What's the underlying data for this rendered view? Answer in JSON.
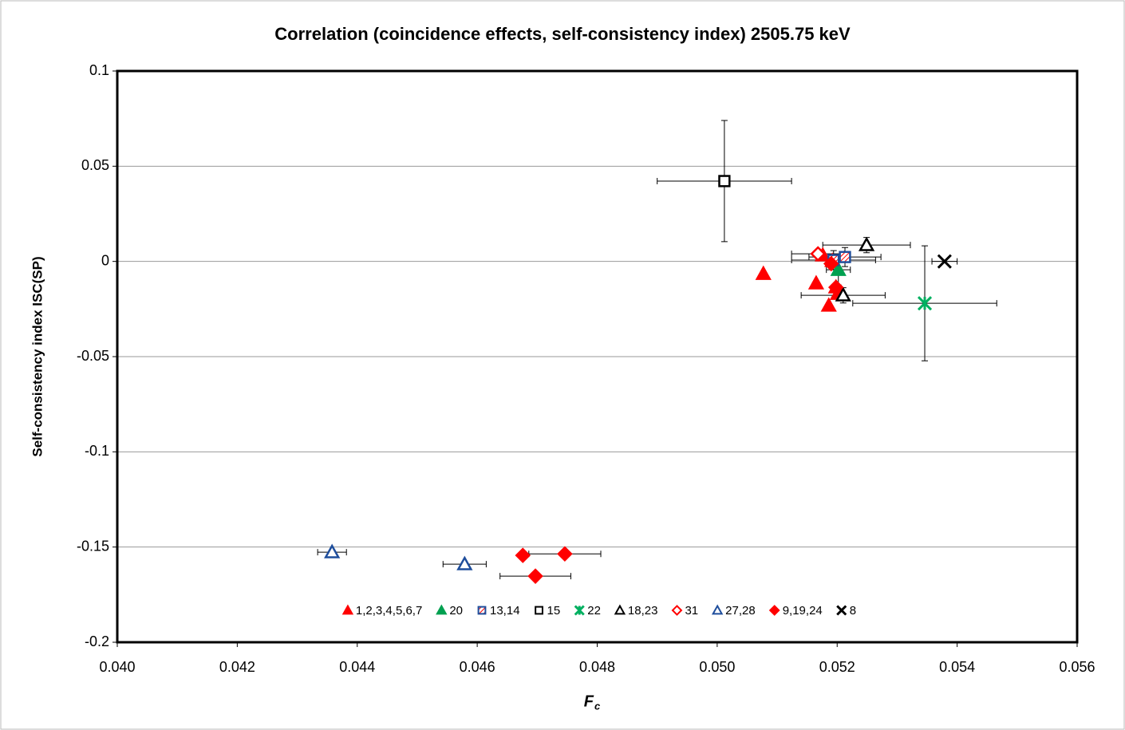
{
  "chart_data": {
    "type": "scatter",
    "title": "Correlation (coincidence effects, self-consistency index) 2505.75 keV",
    "xlabel": "F",
    "xlabel_sub": "c",
    "ylabel": "Self-consistency index ISC(SP)",
    "xlim": [
      0.04,
      0.056
    ],
    "xticks": [
      {
        "value": 0.04,
        "label": "0.040"
      },
      {
        "value": 0.042,
        "label": "0.042"
      },
      {
        "value": 0.044,
        "label": "0.044"
      },
      {
        "value": 0.046,
        "label": "0.046"
      },
      {
        "value": 0.048,
        "label": "0.048"
      },
      {
        "value": 0.05,
        "label": "0.050"
      },
      {
        "value": 0.052,
        "label": "0.052"
      },
      {
        "value": 0.054,
        "label": "0.054"
      },
      {
        "value": 0.056,
        "label": "0.056"
      }
    ],
    "ylim": [
      -0.2,
      0.1
    ],
    "yticks": [
      0.1,
      0.05,
      0,
      -0.05,
      -0.1,
      -0.15,
      -0.2
    ],
    "grid": true,
    "legend": "bottom",
    "series": [
      {
        "name": "1,2,3,4,5,6,7",
        "color": "#ff0000",
        "marker": "triangle",
        "fill": "solid",
        "x": [
          0.05077,
          0.05165,
          0.05176,
          0.05186,
          0.05198,
          0.05192,
          0.05201
        ],
        "values": [
          -0.0065,
          -0.0115,
          0.0032,
          -0.0232,
          -0.0136,
          0.0003,
          -0.017
        ]
      },
      {
        "name": "20",
        "color": "#00a050",
        "marker": "triangle",
        "fill": "solid",
        "x": [
          0.05202
        ],
        "values": [
          -0.0044
        ],
        "xerr": [
          0.0002
        ],
        "yerr": [
          0.008
        ]
      },
      {
        "name": "13,14",
        "color": "#1f4e9c",
        "marker": "square",
        "fill": "hatch",
        "x": [
          0.05194,
          0.05213
        ],
        "values": [
          0.0007,
          0.0023
        ],
        "xerr": [
          0.0007,
          0.0006
        ],
        "yerr": [
          0.005,
          0.005
        ]
      },
      {
        "name": "15",
        "color": "#000000",
        "marker": "square",
        "fill": "hollow",
        "x": [
          0.05012
        ],
        "values": [
          0.0422
        ],
        "xerr": [
          0.00112
        ],
        "yerr": [
          0.0318
        ]
      },
      {
        "name": "22",
        "color": "#00b060",
        "marker": "star",
        "fill": "hollow",
        "x": [
          0.05346
        ],
        "values": [
          -0.022
        ],
        "xerr": [
          0.0012
        ],
        "yerr": [
          0.0302
        ]
      },
      {
        "name": "18,23",
        "color": "#000000",
        "marker": "triangle",
        "fill": "hollow",
        "x": [
          0.05249,
          0.0521
        ],
        "values": [
          0.0086,
          -0.0178
        ],
        "xerr": [
          0.00073,
          0.0007
        ],
        "yerr": [
          0.004,
          0.004
        ]
      },
      {
        "name": "31",
        "color": "#ff0000",
        "marker": "diamond",
        "fill": "hollow",
        "x": [
          0.05168
        ],
        "values": [
          0.004
        ],
        "xerr": [
          0.00044
        ]
      },
      {
        "name": "27,28",
        "color": "#1f4e9c",
        "marker": "triangle",
        "fill": "hollow",
        "x": [
          0.04358,
          0.04579
        ],
        "values": [
          -0.1527,
          -0.159
        ],
        "xerr": [
          0.00024,
          0.00036
        ]
      },
      {
        "name": "9,19,24",
        "color": "#ff0000",
        "marker": "diamond",
        "fill": "solid",
        "x": [
          0.04676,
          0.04746,
          0.04697,
          0.0519,
          0.05198
        ],
        "values": [
          -0.1544,
          -0.1536,
          -0.1653,
          -0.0012,
          -0.0136
        ],
        "xerr": [
          null,
          0.0006,
          0.00059,
          null,
          null
        ]
      },
      {
        "name": "8",
        "color": "#000000",
        "marker": "x",
        "fill": "solid",
        "x": [
          0.05379
        ],
        "values": [
          0.0
        ],
        "xerr": [
          0.00021
        ]
      }
    ]
  }
}
